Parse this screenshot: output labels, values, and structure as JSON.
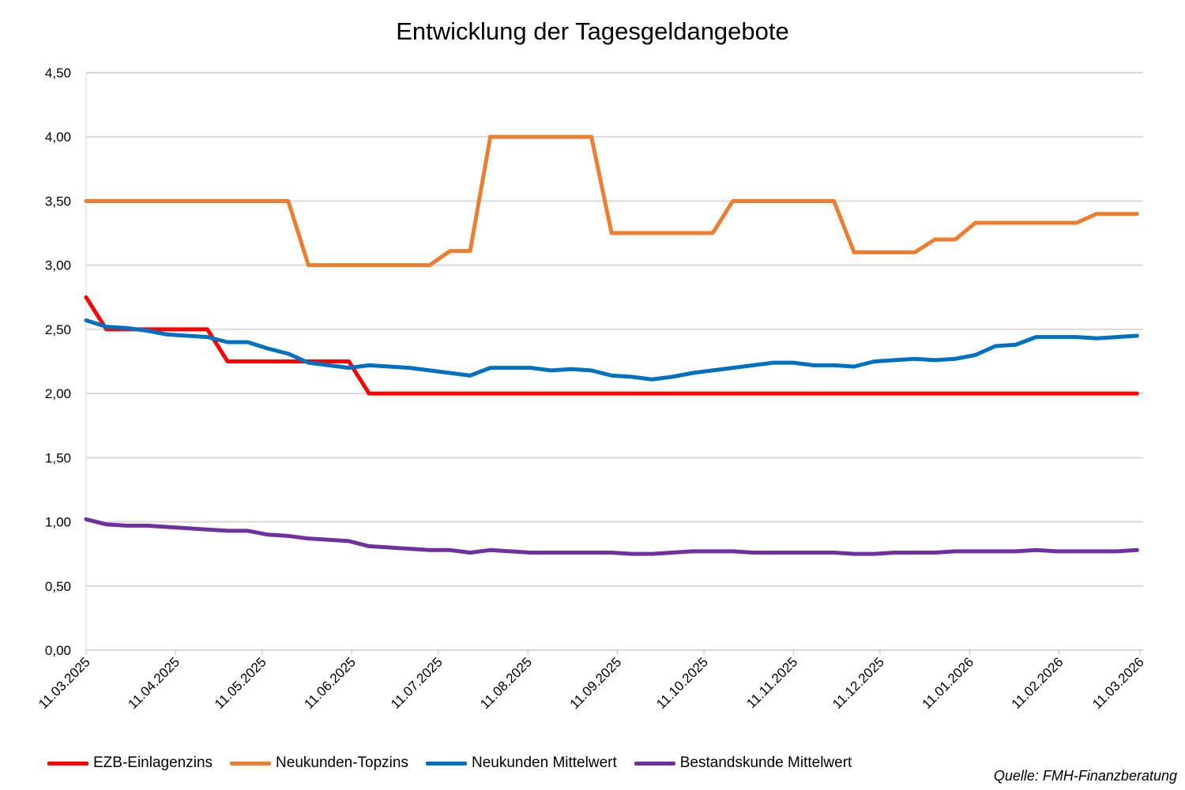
{
  "chart_data": {
    "type": "line",
    "title": "Entwicklung der Tagesgeldangebote",
    "xlabel": "",
    "ylabel": "",
    "ylim": [
      0,
      4.5
    ],
    "yticks": [
      "0,00",
      "0,50",
      "1,00",
      "1,50",
      "2,00",
      "2,50",
      "3,00",
      "3,50",
      "4,00",
      "4,50"
    ],
    "xticks": [
      "11.03.2025",
      "11.04.2025",
      "11.05.2025",
      "11.06.2025",
      "11.07.2025",
      "11.08.2025",
      "11.09.2025",
      "11.10.2025",
      "11.11.2025",
      "11.12.2025",
      "11.01.2026",
      "11.02.2026",
      "11.03.2026"
    ],
    "grid": "horizontal",
    "legend_position": "bottom",
    "x": [
      "11.03.2025",
      "18.03.2025",
      "25.03.2025",
      "01.04.2025",
      "08.04.2025",
      "15.04.2025",
      "22.04.2025",
      "29.04.2025",
      "06.05.2025",
      "13.05.2025",
      "20.05.2025",
      "27.05.2025",
      "03.06.2025",
      "10.06.2025",
      "17.06.2025",
      "24.06.2025",
      "01.07.2025",
      "08.07.2025",
      "15.07.2025",
      "22.07.2025",
      "29.07.2025",
      "05.08.2025",
      "12.08.2025",
      "19.08.2025",
      "26.08.2025",
      "02.09.2025",
      "09.09.2025",
      "16.09.2025",
      "23.09.2025",
      "30.09.2025",
      "07.10.2025",
      "14.10.2025",
      "21.10.2025",
      "28.10.2025",
      "04.11.2025",
      "11.11.2025",
      "18.11.2025",
      "25.11.2025",
      "02.12.2025",
      "09.12.2025",
      "16.12.2025",
      "23.12.2025",
      "30.12.2025",
      "06.01.2026",
      "13.01.2026",
      "20.01.2026",
      "27.01.2026",
      "03.02.2026",
      "10.02.2026",
      "17.02.2026",
      "24.02.2026",
      "03.03.2026",
      "10.03.2026"
    ],
    "series": [
      {
        "name": "EZB-Einlagenzins",
        "color": "#FF0000",
        "values": [
          2.75,
          2.5,
          2.5,
          2.5,
          2.5,
          2.5,
          2.5,
          2.25,
          2.25,
          2.25,
          2.25,
          2.25,
          2.25,
          2.25,
          2,
          2,
          2,
          2,
          2,
          2,
          2,
          2,
          2,
          2,
          2,
          2,
          2,
          2,
          2,
          2,
          2,
          2,
          2,
          2,
          2,
          2,
          2,
          2,
          2,
          2,
          2,
          2,
          2,
          2,
          2,
          2,
          2,
          2,
          2,
          2,
          2,
          2,
          2
        ]
      },
      {
        "name": "Neukunden-Topzins",
        "color": "#ED7D31",
        "values": [
          3.5,
          3.5,
          3.5,
          3.5,
          3.5,
          3.5,
          3.5,
          3.5,
          3.5,
          3.5,
          3.5,
          3,
          3,
          3,
          3,
          3,
          3,
          3,
          3.11,
          3.11,
          4,
          4,
          4,
          4,
          4,
          4,
          3.25,
          3.25,
          3.25,
          3.25,
          3.25,
          3.25,
          3.5,
          3.5,
          3.5,
          3.5,
          3.5,
          3.5,
          3.1,
          3.1,
          3.1,
          3.1,
          3.2,
          3.2,
          3.33,
          3.33,
          3.33,
          3.33,
          3.33,
          3.33,
          3.4,
          3.4,
          3.4
        ]
      },
      {
        "name": "Neukunden Mittelwert",
        "color": "#0070C0",
        "values": [
          2.57,
          2.52,
          2.51,
          2.49,
          2.46,
          2.45,
          2.44,
          2.4,
          2.4,
          2.35,
          2.31,
          2.24,
          2.22,
          2.2,
          2.22,
          2.21,
          2.2,
          2.18,
          2.16,
          2.14,
          2.2,
          2.2,
          2.2,
          2.18,
          2.19,
          2.18,
          2.14,
          2.13,
          2.11,
          2.13,
          2.16,
          2.18,
          2.2,
          2.22,
          2.24,
          2.24,
          2.22,
          2.22,
          2.21,
          2.25,
          2.26,
          2.27,
          2.26,
          2.27,
          2.3,
          2.37,
          2.38,
          2.44,
          2.44,
          2.44,
          2.43,
          2.44,
          2.45
        ]
      },
      {
        "name": "Bestandskunde Mittelwert",
        "color": "#7030A0",
        "values": [
          1.02,
          0.98,
          0.97,
          0.97,
          0.96,
          0.95,
          0.94,
          0.93,
          0.93,
          0.9,
          0.89,
          0.87,
          0.86,
          0.85,
          0.81,
          0.8,
          0.79,
          0.78,
          0.78,
          0.76,
          0.78,
          0.77,
          0.76,
          0.76,
          0.76,
          0.76,
          0.76,
          0.75,
          0.75,
          0.76,
          0.77,
          0.77,
          0.77,
          0.76,
          0.76,
          0.76,
          0.76,
          0.76,
          0.75,
          0.75,
          0.76,
          0.76,
          0.76,
          0.77,
          0.77,
          0.77,
          0.77,
          0.78,
          0.77,
          0.77,
          0.77,
          0.77,
          0.78
        ]
      }
    ],
    "source": "Quelle: FMH-Finanzberatung"
  }
}
